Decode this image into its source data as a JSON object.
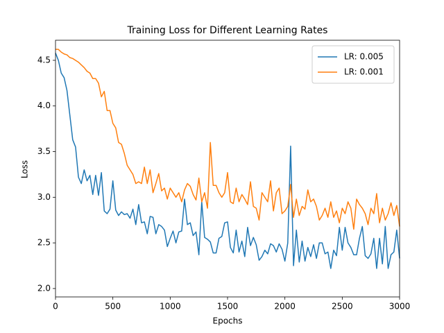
{
  "chart_data": {
    "type": "line",
    "title": "Training Loss for Different Learning Rates",
    "xlabel": "Epochs",
    "ylabel": "Loss",
    "x": [
      0,
      25,
      50,
      75,
      100,
      125,
      150,
      175,
      200,
      225,
      250,
      275,
      300,
      325,
      350,
      375,
      400,
      425,
      450,
      475,
      500,
      525,
      550,
      575,
      600,
      625,
      650,
      675,
      700,
      725,
      750,
      775,
      800,
      825,
      850,
      875,
      900,
      925,
      950,
      975,
      1000,
      1025,
      1050,
      1075,
      1100,
      1125,
      1150,
      1175,
      1200,
      1225,
      1250,
      1275,
      1300,
      1325,
      1350,
      1375,
      1400,
      1425,
      1450,
      1475,
      1500,
      1525,
      1550,
      1575,
      1600,
      1625,
      1650,
      1675,
      1700,
      1725,
      1750,
      1775,
      1800,
      1825,
      1850,
      1875,
      1900,
      1925,
      1950,
      1975,
      2000,
      2025,
      2050,
      2075,
      2100,
      2125,
      2150,
      2175,
      2200,
      2225,
      2250,
      2275,
      2300,
      2325,
      2350,
      2375,
      2400,
      2425,
      2450,
      2475,
      2500,
      2525,
      2550,
      2575,
      2600,
      2625,
      2650,
      2675,
      2700,
      2725,
      2750,
      2775,
      2800,
      2825,
      2850,
      2875,
      2900,
      2925,
      2950,
      2975,
      3000
    ],
    "series": [
      {
        "name": "LR: 0.005",
        "color": "#1f77b4",
        "values": [
          4.58,
          4.5,
          4.36,
          4.31,
          4.17,
          3.9,
          3.63,
          3.55,
          3.22,
          3.15,
          3.3,
          3.18,
          3.24,
          3.03,
          3.24,
          3.02,
          3.27,
          2.85,
          2.82,
          2.87,
          3.18,
          2.86,
          2.8,
          2.84,
          2.81,
          2.82,
          2.77,
          2.87,
          2.7,
          2.92,
          2.72,
          2.73,
          2.6,
          2.79,
          2.78,
          2.6,
          2.7,
          2.68,
          2.64,
          2.46,
          2.55,
          2.63,
          2.5,
          2.62,
          2.63,
          2.98,
          2.7,
          2.72,
          2.58,
          2.62,
          2.37,
          2.95,
          2.56,
          2.54,
          2.51,
          2.39,
          2.39,
          2.55,
          2.57,
          2.72,
          2.73,
          2.45,
          2.39,
          2.64,
          2.4,
          2.52,
          2.35,
          2.67,
          2.47,
          2.56,
          2.48,
          2.31,
          2.35,
          2.42,
          2.38,
          2.49,
          2.47,
          2.4,
          2.49,
          2.43,
          2.3,
          2.5,
          3.56,
          2.25,
          2.64,
          2.29,
          2.52,
          2.3,
          2.45,
          2.35,
          2.48,
          2.33,
          2.5,
          2.5,
          2.38,
          2.4,
          2.22,
          2.42,
          2.36,
          2.67,
          2.42,
          2.67,
          2.5,
          2.45,
          2.37,
          2.37,
          2.55,
          2.68,
          2.36,
          2.33,
          2.38,
          2.55,
          2.22,
          2.55,
          2.27,
          2.68,
          2.22,
          2.37,
          2.4,
          2.64,
          2.33
        ]
      },
      {
        "name": "LR: 0.001",
        "color": "#ff7f0e",
        "values": [
          4.62,
          4.62,
          4.59,
          4.57,
          4.56,
          4.53,
          4.52,
          4.5,
          4.48,
          4.45,
          4.42,
          4.38,
          4.36,
          4.3,
          4.3,
          4.25,
          4.1,
          4.16,
          3.95,
          3.95,
          3.81,
          3.76,
          3.6,
          3.58,
          3.48,
          3.35,
          3.3,
          3.25,
          3.15,
          3.17,
          3.15,
          3.33,
          3.15,
          3.3,
          3.05,
          3.15,
          3.26,
          3.07,
          3.1,
          2.98,
          3.1,
          3.05,
          3.0,
          3.05,
          2.95,
          3.08,
          3.15,
          3.12,
          3.03,
          2.97,
          3.21,
          2.95,
          3.05,
          2.88,
          3.6,
          3.13,
          3.13,
          3.05,
          3.0,
          3.05,
          3.27,
          2.95,
          2.93,
          3.1,
          2.95,
          3.03,
          2.98,
          2.92,
          3.17,
          2.9,
          2.88,
          2.75,
          3.05,
          3.0,
          2.95,
          3.18,
          2.85,
          3.05,
          3.1,
          2.82,
          2.85,
          2.9,
          3.14,
          2.78,
          2.98,
          2.8,
          2.9,
          2.87,
          3.08,
          2.95,
          2.98,
          2.9,
          2.75,
          2.8,
          2.88,
          2.78,
          2.95,
          2.78,
          2.85,
          2.72,
          2.88,
          2.82,
          2.95,
          2.88,
          2.65,
          2.98,
          2.92,
          2.88,
          2.82,
          2.7,
          2.88,
          2.82,
          3.04,
          2.72,
          2.88,
          2.75,
          2.82,
          2.94,
          2.8,
          2.91,
          2.68
        ]
      }
    ],
    "xlim": [
      0,
      3000
    ],
    "xticks": [
      0,
      500,
      1000,
      1500,
      2000,
      2500,
      3000
    ],
    "ylim": [
      1.908,
      4.72
    ],
    "yticks": [
      {
        "value": 2,
        "label": "2.0"
      },
      2.5,
      {
        "value": 3,
        "label": "3.0"
      },
      3.5,
      {
        "value": 4,
        "label": "4.0"
      },
      4.5
    ],
    "legend": "upper right",
    "grid": false
  }
}
